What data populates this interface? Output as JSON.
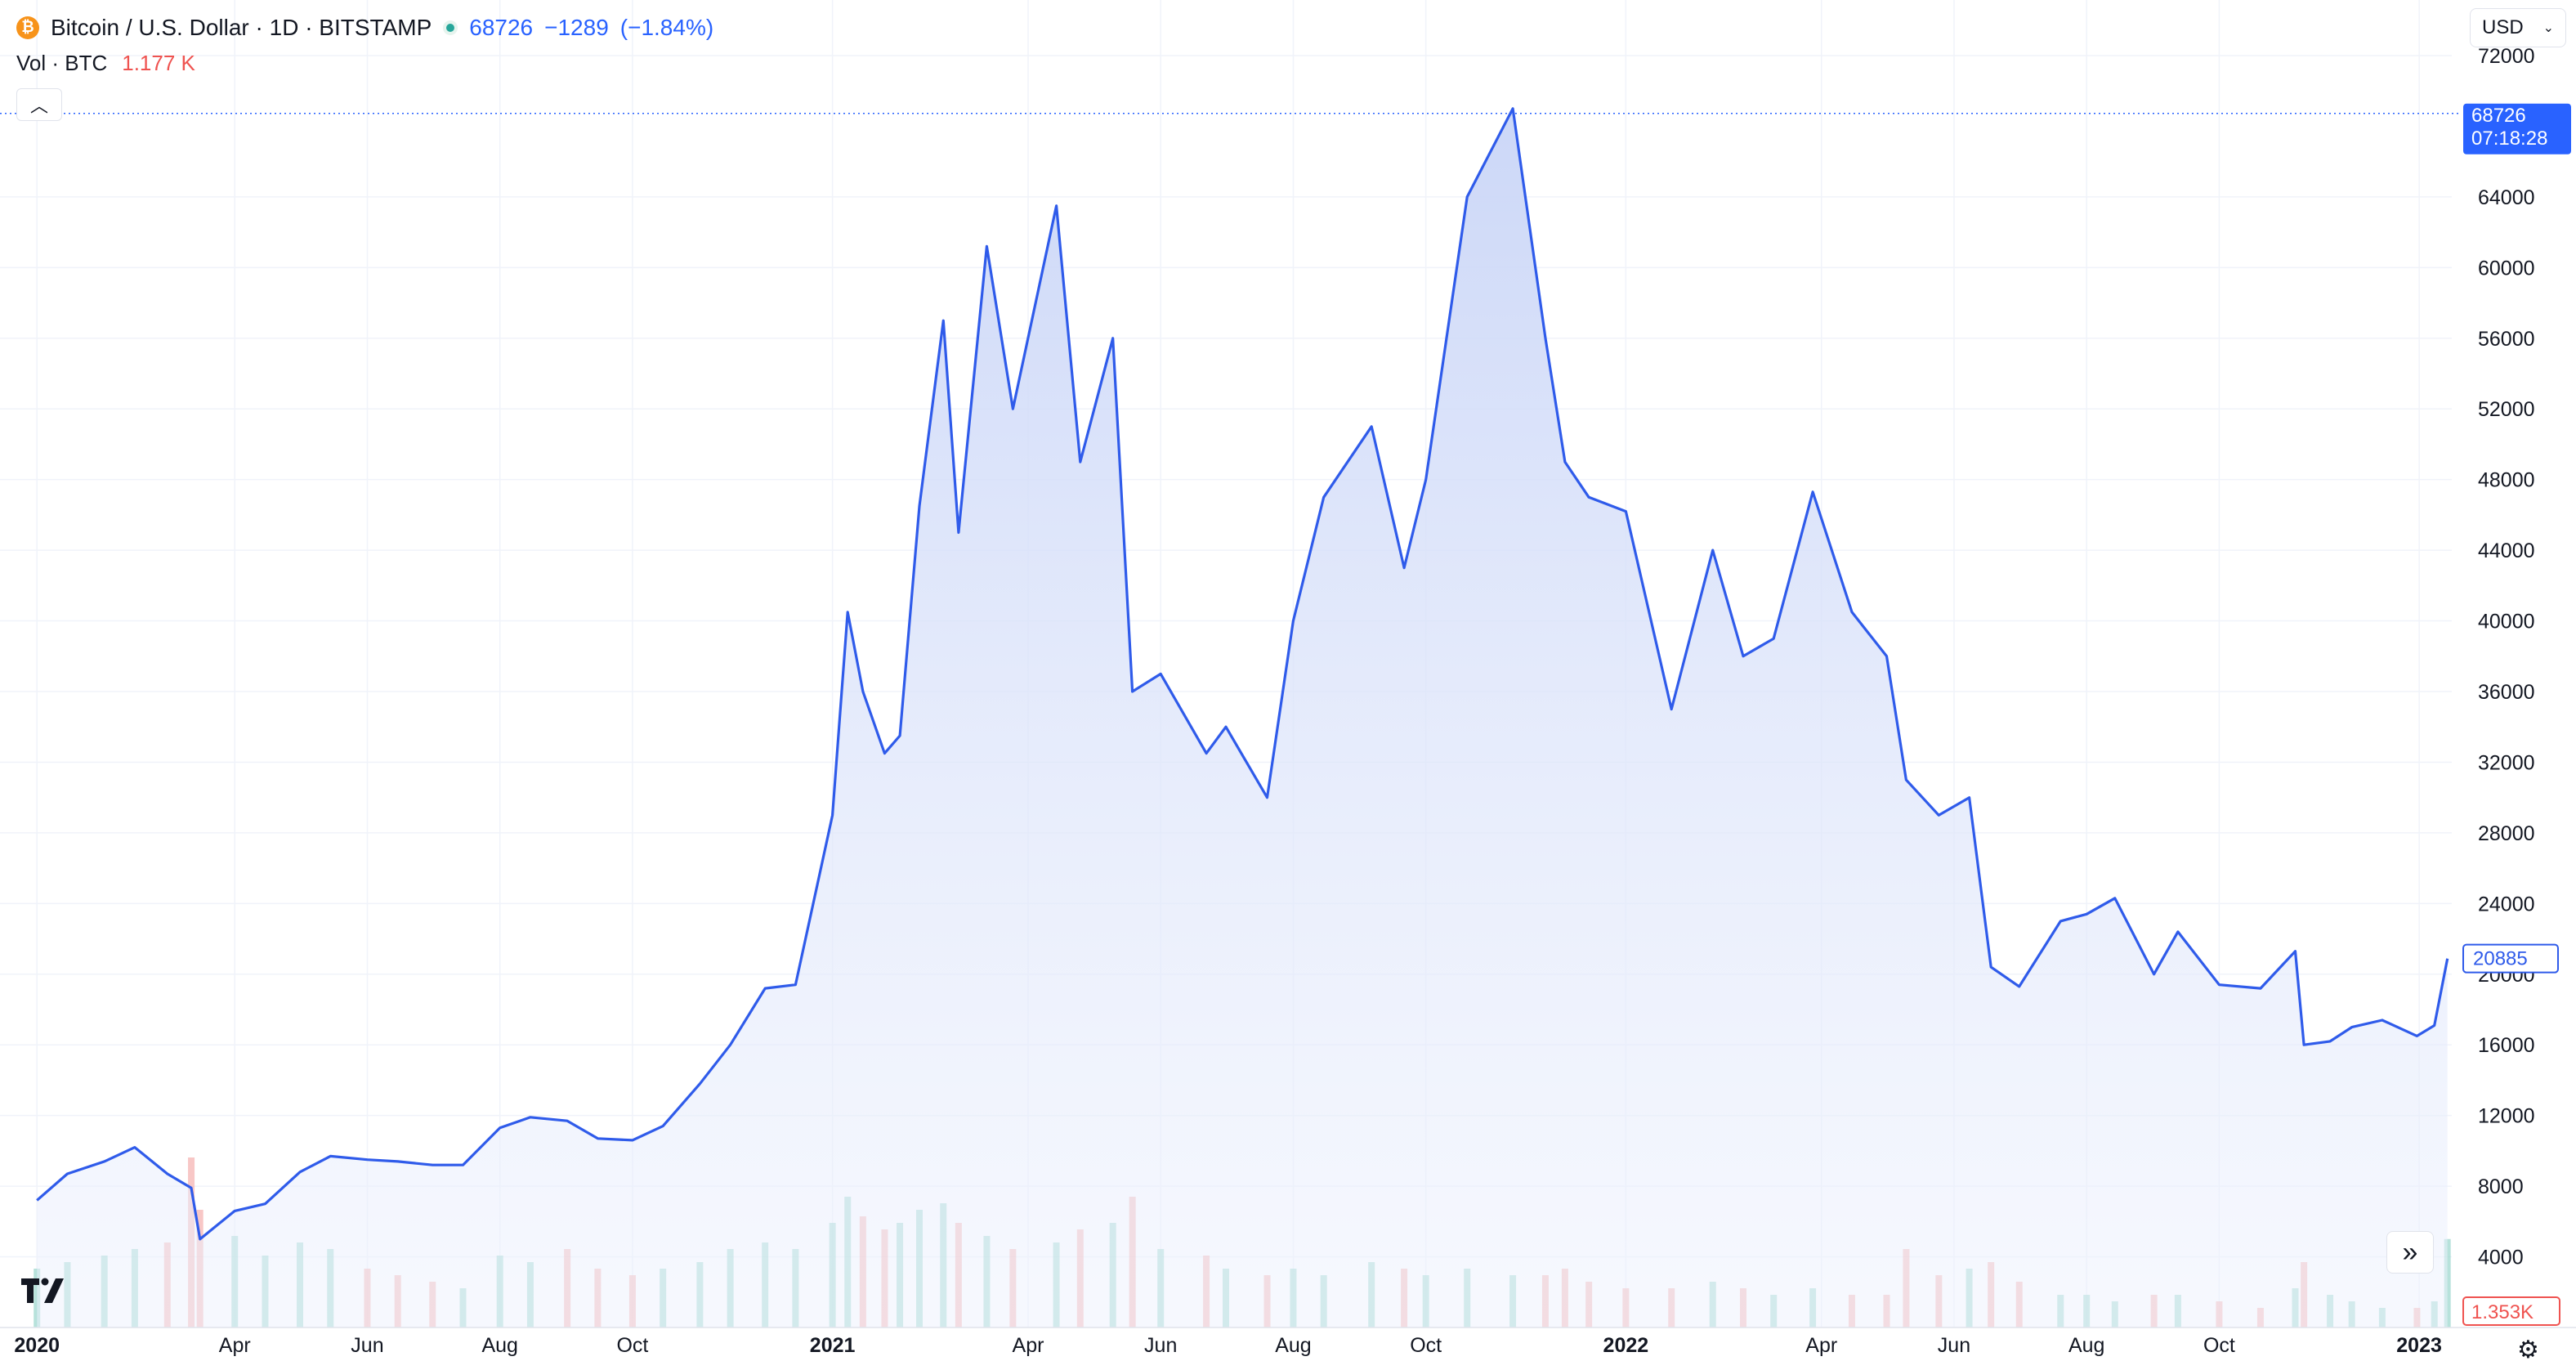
{
  "header": {
    "title": "Bitcoin / U.S. Dollar · 1D · BITSTAMP",
    "coin_glyph": "₿",
    "last_price": "68726",
    "change": "−1289",
    "change_pct": "(−1.84%)"
  },
  "volume_legend": {
    "label": "Vol · BTC",
    "value": "1.177 K"
  },
  "currency": {
    "selected": "USD"
  },
  "price_label": {
    "value": "68726",
    "time": "07:18:28"
  },
  "last_close_label": "20885",
  "volume_label": "1.353K",
  "colors": {
    "line": "#2f5bea",
    "fill_top": "#c9d5f7",
    "up_volume": "#9fd8cf",
    "down_volume": "#f6b4b3",
    "accent": "#2962ff"
  },
  "chart_data": {
    "type": "area",
    "title": "Bitcoin / U.S. Dollar · 1D · BITSTAMP",
    "ylim": [
      0,
      72000
    ],
    "y_ticks": [
      "72000",
      "64000",
      "60000",
      "56000",
      "52000",
      "48000",
      "44000",
      "40000",
      "36000",
      "32000",
      "28000",
      "24000",
      "20000",
      "16000",
      "12000",
      "8000",
      "4000"
    ],
    "x_ticks": [
      "2020",
      "Apr",
      "Jun",
      "Aug",
      "Oct",
      "2021",
      "Apr",
      "Jun",
      "Aug",
      "Oct",
      "2022",
      "Apr",
      "Jun",
      "Aug",
      "Oct",
      "2023"
    ],
    "grid": true,
    "series": [
      {
        "x": [
          "2020-01-01",
          "2020-01-15",
          "2020-02-01",
          "2020-02-15",
          "2020-03-01",
          "2020-03-12",
          "2020-03-16",
          "2020-04-01",
          "2020-04-15",
          "2020-05-01",
          "2020-05-15",
          "2020-06-01",
          "2020-06-15",
          "2020-07-01",
          "2020-07-15",
          "2020-08-01",
          "2020-08-15",
          "2020-09-01",
          "2020-09-15",
          "2020-10-01",
          "2020-10-15",
          "2020-11-01",
          "2020-11-15",
          "2020-12-01",
          "2020-12-15",
          "2021-01-01",
          "2021-01-08",
          "2021-01-15",
          "2021-01-25",
          "2021-02-01",
          "2021-02-10",
          "2021-02-21",
          "2021-02-28",
          "2021-03-13",
          "2021-03-25",
          "2021-04-14",
          "2021-04-25",
          "2021-05-10",
          "2021-05-19",
          "2021-06-01",
          "2021-06-22",
          "2021-07-01",
          "2021-07-20",
          "2021-08-01",
          "2021-08-15",
          "2021-09-06",
          "2021-09-21",
          "2021-10-01",
          "2021-10-20",
          "2021-11-10",
          "2021-11-25",
          "2021-12-04",
          "2021-12-15",
          "2022-01-01",
          "2022-01-22",
          "2022-02-10",
          "2022-02-24",
          "2022-03-10",
          "2022-03-28",
          "2022-04-15",
          "2022-05-01",
          "2022-05-10",
          "2022-05-25",
          "2022-06-08",
          "2022-06-18",
          "2022-07-01",
          "2022-07-20",
          "2022-08-01",
          "2022-08-14",
          "2022-09-01",
          "2022-09-12",
          "2022-10-01",
          "2022-10-20",
          "2022-11-05",
          "2022-11-09",
          "2022-11-21",
          "2022-12-01",
          "2022-12-15",
          "2022-12-31",
          "2023-01-08",
          "2023-01-14"
        ],
        "values": [
          7200,
          8700,
          9400,
          10200,
          8700,
          7900,
          5000,
          6600,
          7000,
          8800,
          9700,
          9500,
          9400,
          9200,
          9200,
          11300,
          11900,
          11700,
          10700,
          10600,
          11400,
          13800,
          16000,
          19200,
          19400,
          29000,
          40500,
          36000,
          32500,
          33500,
          46500,
          57000,
          45000,
          61200,
          52000,
          63500,
          49000,
          56000,
          36000,
          37000,
          32500,
          34000,
          30000,
          40000,
          47000,
          51000,
          43000,
          48000,
          64000,
          69000,
          56000,
          49000,
          47000,
          46200,
          35000,
          44000,
          38000,
          39000,
          47300,
          40500,
          38000,
          31000,
          29000,
          30000,
          20400,
          19300,
          23000,
          23400,
          24300,
          20000,
          22400,
          19400,
          19200,
          21300,
          16000,
          16200,
          17000,
          17400,
          16500,
          17100,
          20885
        ],
        "volume_K": [
          0.9,
          1.0,
          1.1,
          1.2,
          1.3,
          2.6,
          1.8,
          1.4,
          1.1,
          1.3,
          1.2,
          0.9,
          0.8,
          0.7,
          0.6,
          1.1,
          1.0,
          1.2,
          0.9,
          0.8,
          0.9,
          1.0,
          1.2,
          1.3,
          1.2,
          1.6,
          2.0,
          1.7,
          1.5,
          1.6,
          1.8,
          1.9,
          1.6,
          1.4,
          1.2,
          1.3,
          1.5,
          1.6,
          2.0,
          1.2,
          1.1,
          0.9,
          0.8,
          0.9,
          0.8,
          1.0,
          0.9,
          0.8,
          0.9,
          0.8,
          0.8,
          0.9,
          0.7,
          0.6,
          0.6,
          0.7,
          0.6,
          0.5,
          0.6,
          0.5,
          0.5,
          1.2,
          0.8,
          0.9,
          1.0,
          0.7,
          0.5,
          0.5,
          0.4,
          0.5,
          0.5,
          0.4,
          0.3,
          0.6,
          1.0,
          0.5,
          0.4,
          0.3,
          0.3,
          0.4,
          1.353
        ]
      }
    ]
  }
}
